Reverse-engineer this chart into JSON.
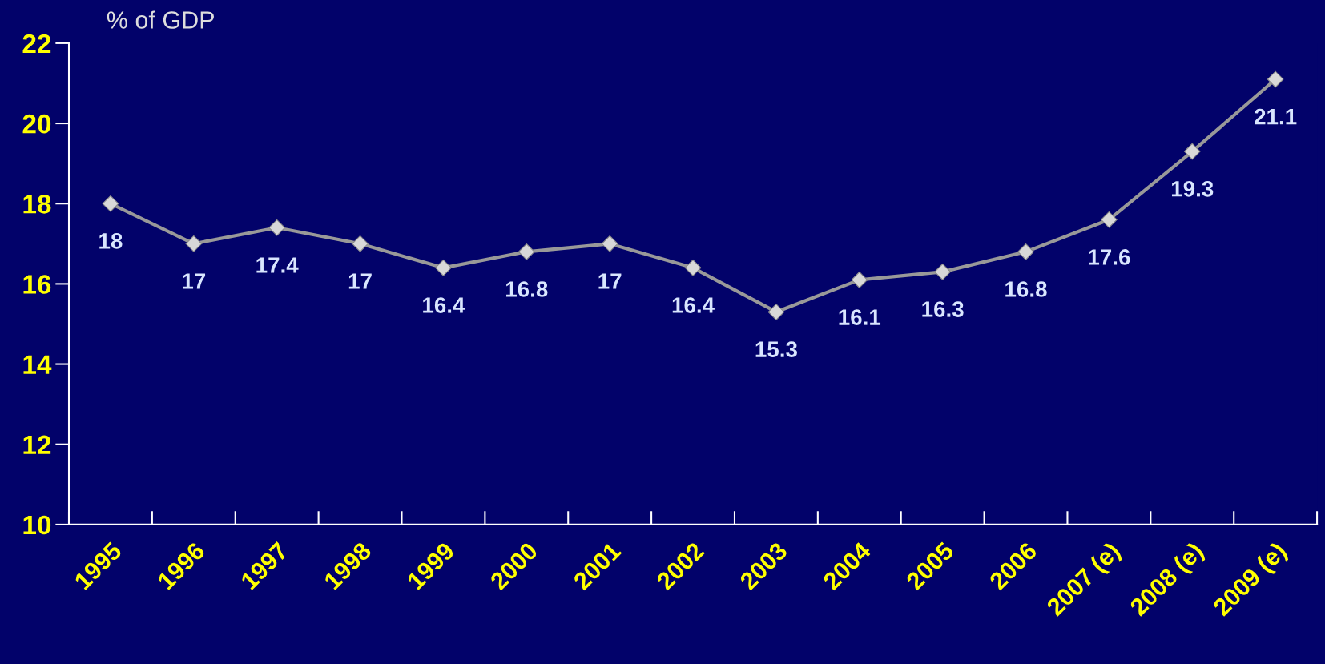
{
  "chart_data": {
    "type": "line",
    "ylabel": "% of GDP",
    "categories": [
      "1995",
      "1996",
      "1997",
      "1998",
      "1999",
      "2000",
      "2001",
      "2002",
      "2003",
      "2004",
      "2005",
      "2006",
      "2007 (e)",
      "2008 (e)",
      "2009 (e)"
    ],
    "series": [
      {
        "color": "#999999",
        "values": [
          18,
          17,
          17.4,
          17,
          16.4,
          16.8,
          17,
          16.4,
          15.3,
          16.1,
          16.3,
          16.8,
          17.6,
          19.3,
          21.1
        ]
      }
    ],
    "data_labels": true,
    "marker": "diamond",
    "line_style": "solid",
    "grid": false,
    "legend": false,
    "ylim": [
      10,
      22
    ],
    "yticks": [
      10,
      12,
      14,
      16,
      18,
      20,
      22
    ]
  }
}
